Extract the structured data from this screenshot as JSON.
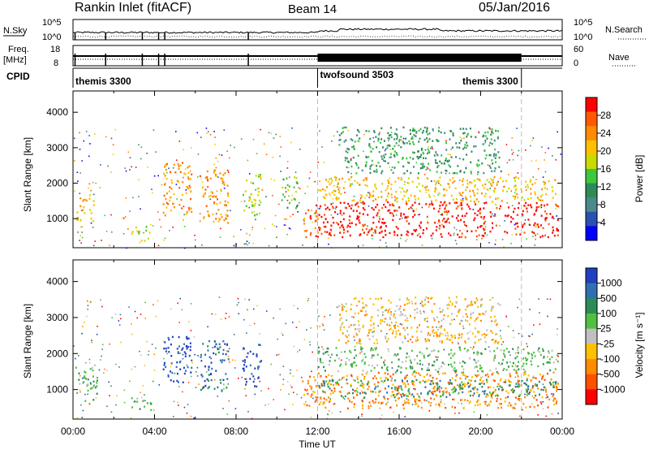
{
  "header": {
    "station": "Rankin Inlet (fitACF)",
    "beam": "Beam 14",
    "date": "05/Jan/2016"
  },
  "top_panels": {
    "nsky_label": "N.Sky",
    "nsky_ticks": [
      "10^5",
      "10^0"
    ],
    "nsearch_label": "N.Search",
    "nsearch_ticks": [
      "10^5",
      "10^0"
    ],
    "freq_label": "Freq.",
    "freq_unit": "[MHz]",
    "freq_ticks": [
      "18",
      "8"
    ],
    "nave_label": "Nave",
    "nave_ticks": [
      "60",
      "0"
    ],
    "cpid_label": "CPID",
    "cpid_segments": [
      {
        "name": "themis 3300",
        "start_h": 0,
        "end_h": 12
      },
      {
        "name": "twofsound 3503",
        "start_h": 12,
        "end_h": 22
      },
      {
        "name": "themis 3300",
        "start_h": 22,
        "end_h": 24
      }
    ]
  },
  "chart_data": [
    {
      "type": "heatmap",
      "panel": "power",
      "ylabel": "Slant Range [km]",
      "xlim": [
        0,
        24
      ],
      "ylim": [
        180,
        4600
      ],
      "yticks": [
        1000,
        2000,
        3000,
        4000
      ],
      "colorbar": {
        "label": "Power [dB]",
        "ticks": [
          "28",
          "24",
          "20",
          "16",
          "12",
          "8",
          "4"
        ],
        "colors": [
          "#ff0000",
          "#ff5a00",
          "#ff8c00",
          "#ffc000",
          "#c8dc00",
          "#3cc83c",
          "#2e8b57",
          "#4a8a8a",
          "#2a50b0",
          "#0000ff"
        ]
      },
      "regions": [
        {
          "t0": 0.1,
          "t1": 1.0,
          "r0": 900,
          "r1": 1700,
          "level": 3
        },
        {
          "t0": 2.8,
          "t1": 3.8,
          "r0": 400,
          "r1": 800,
          "level": 4
        },
        {
          "t0": 4.4,
          "t1": 5.8,
          "r0": 1100,
          "r1": 2600,
          "level": 2
        },
        {
          "t0": 6.2,
          "t1": 7.6,
          "r0": 900,
          "r1": 2400,
          "level": 2
        },
        {
          "t0": 8.3,
          "t1": 9.2,
          "r0": 1100,
          "r1": 2300,
          "level": 4
        },
        {
          "t0": 10.2,
          "t1": 11.0,
          "r0": 1300,
          "r1": 2200,
          "level": 5
        },
        {
          "t0": 11.2,
          "t1": 12.0,
          "r0": 500,
          "r1": 1400,
          "level": 1
        },
        {
          "t0": 12.0,
          "t1": 23.8,
          "r0": 500,
          "r1": 1500,
          "level": 0
        },
        {
          "t0": 12.0,
          "t1": 23.8,
          "r0": 1500,
          "r1": 2200,
          "level": 3
        },
        {
          "t0": 13.0,
          "t1": 21.0,
          "r0": 2300,
          "r1": 3600,
          "level": 6
        }
      ]
    },
    {
      "type": "heatmap",
      "panel": "velocity",
      "ylabel": "Slant Range [km]",
      "xlabel": "Time UT",
      "xlim": [
        0,
        24
      ],
      "ylim": [
        180,
        4600
      ],
      "xticks": [
        "00:00",
        "04:00",
        "08:00",
        "12:00",
        "16:00",
        "20:00",
        "00:00"
      ],
      "yticks": [
        1000,
        2000,
        3000,
        4000
      ],
      "colorbar": {
        "label": "Velocity [m s⁻¹]",
        "ticks": [
          "1000",
          "500",
          "100",
          "25",
          "-25",
          "-100",
          "-500",
          "-1000"
        ],
        "colors": [
          "#2040c0",
          "#3070b0",
          "#2e8b57",
          "#50c040",
          "#c0c0c0",
          "#ffc000",
          "#ff8c00",
          "#ff5000",
          "#ff0000"
        ]
      },
      "regions": [
        {
          "t0": 0.1,
          "t1": 1.2,
          "r0": 700,
          "r1": 1700,
          "level": 3
        },
        {
          "t0": 2.8,
          "t1": 3.8,
          "r0": 400,
          "r1": 800,
          "level": 3
        },
        {
          "t0": 4.4,
          "t1": 5.8,
          "r0": 1200,
          "r1": 2500,
          "level": 0
        },
        {
          "t0": 6.2,
          "t1": 7.6,
          "r0": 1000,
          "r1": 2400,
          "level": 1
        },
        {
          "t0": 8.3,
          "t1": 9.2,
          "r0": 1100,
          "r1": 2300,
          "level": 0
        },
        {
          "t0": 11.2,
          "t1": 12.0,
          "r0": 500,
          "r1": 1400,
          "level": 6
        },
        {
          "t0": 12.0,
          "t1": 23.8,
          "r0": 500,
          "r1": 1500,
          "level": 6
        },
        {
          "t0": 12.0,
          "t1": 23.8,
          "r0": 800,
          "r1": 1300,
          "level": 2
        },
        {
          "t0": 12.0,
          "t1": 23.8,
          "r0": 1500,
          "r1": 2200,
          "level": 3
        },
        {
          "t0": 13.0,
          "t1": 21.0,
          "r0": 2300,
          "r1": 3600,
          "level": 5
        }
      ]
    }
  ]
}
